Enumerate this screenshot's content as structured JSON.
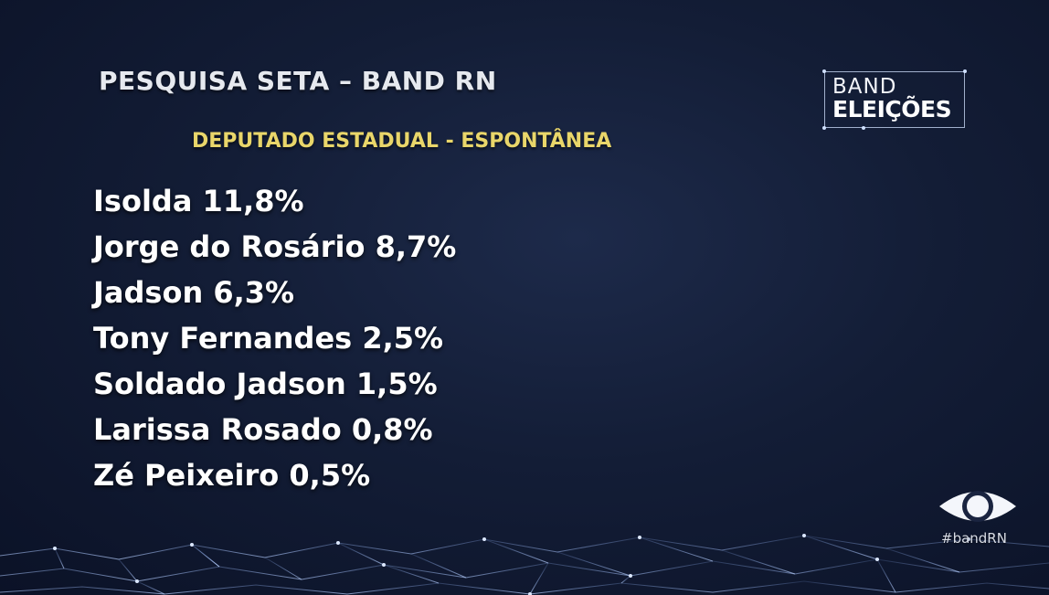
{
  "header": {
    "title": "PESQUISA SETA – BAND RN",
    "subtitle": "DEPUTADO ESTADUAL - ESPONTÂNEA"
  },
  "results": [
    {
      "text": "Isolda 11,8%"
    },
    {
      "text": "Jorge do Rosário 8,7%"
    },
    {
      "text": "Jadson 6,3%"
    },
    {
      "text": "Tony Fernandes 2,5%"
    },
    {
      "text": "Soldado Jadson 1,5%"
    },
    {
      "text": "Larissa Rosado 0,8%"
    },
    {
      "text": "Zé Peixeiro 0,5%"
    }
  ],
  "logo": {
    "line1": "BAND",
    "line2": "ELEIÇÕES"
  },
  "channel": {
    "hashtag": "#bandRN"
  },
  "colors": {
    "background": "#131d36",
    "title": "#e6e9ef",
    "subtitle": "#e9d66a",
    "results": "#ffffff"
  }
}
